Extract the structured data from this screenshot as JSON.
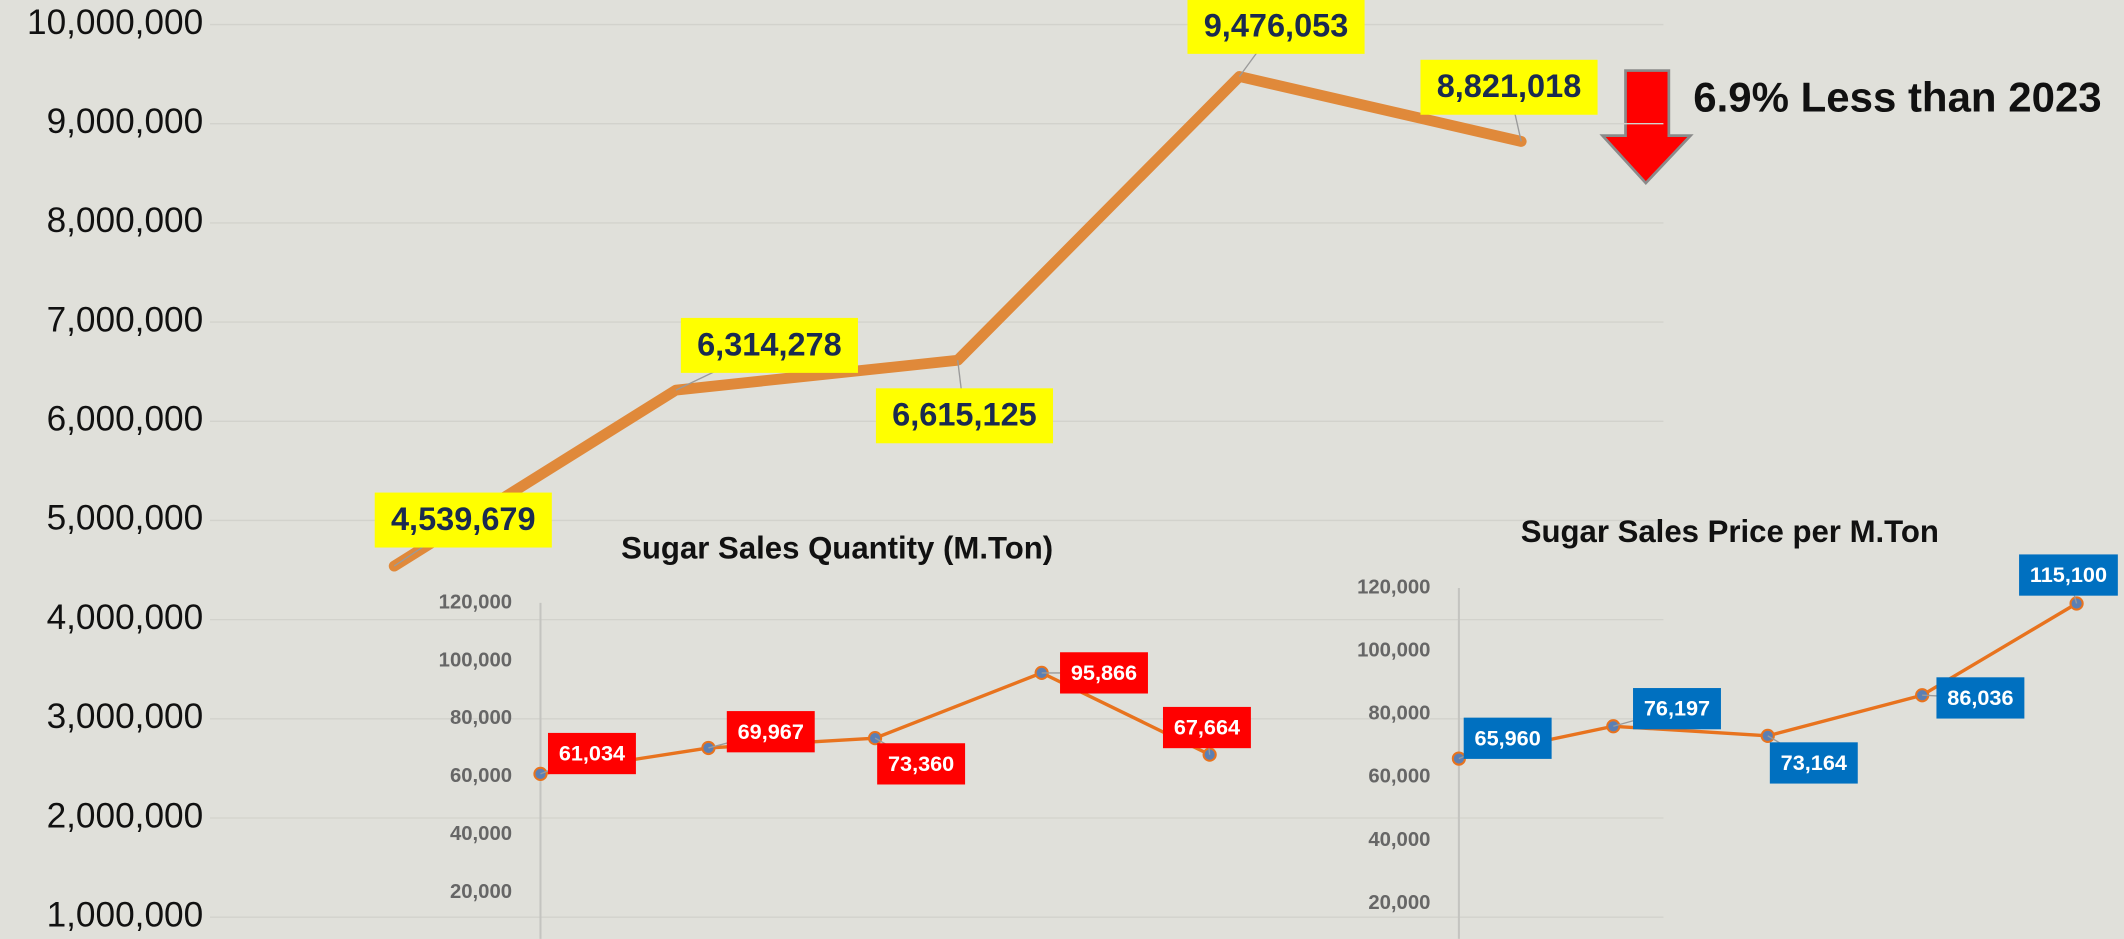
{
  "chart_data": [
    {
      "type": "line",
      "color": "#e0893a",
      "values": [
        4539679,
        6314278,
        6615125,
        9476053,
        8821018
      ],
      "value_labels": [
        "4,539,679",
        "6,314,278",
        "6,615,125",
        "9,476,053",
        "8,821,018"
      ],
      "ylim": [
        1000000,
        10000000
      ],
      "yticks": [
        {
          "value": 1000000,
          "label": "1,000,000"
        },
        {
          "value": 2000000,
          "label": "2,000,000"
        },
        {
          "value": 3000000,
          "label": "3,000,000"
        },
        {
          "value": 4000000,
          "label": "4,000,000"
        },
        {
          "value": 5000000,
          "label": "5,000,000"
        },
        {
          "value": 6000000,
          "label": "6,000,000"
        },
        {
          "value": 7000000,
          "label": "7,000,000"
        },
        {
          "value": 8000000,
          "label": "8,000,000"
        },
        {
          "value": 9000000,
          "label": "9,000,000"
        },
        {
          "value": 10000000,
          "label": "10,000,000"
        }
      ],
      "grid": true,
      "label_color": "#ffff00",
      "annotation": "6.9% Less than 2023"
    },
    {
      "type": "line",
      "title": "Sugar Sales Quantity (M.Ton)",
      "color": "#e8731e",
      "values": [
        61034,
        69967,
        73360,
        95866,
        67664
      ],
      "value_labels": [
        "61,034",
        "69,967",
        "73,360",
        "95,866",
        "67,664"
      ],
      "ylim": [
        20000,
        120000
      ],
      "yticks": [
        {
          "value": 20000,
          "label": "20,000"
        },
        {
          "value": 40000,
          "label": "40,000"
        },
        {
          "value": 60000,
          "label": "60,000"
        },
        {
          "value": 80000,
          "label": "80,000"
        },
        {
          "value": 100000,
          "label": "100,000"
        },
        {
          "value": 120000,
          "label": "120,000"
        }
      ],
      "label_color": "#ff0000"
    },
    {
      "type": "line",
      "title": "Sugar Sales Price per M.Ton",
      "color": "#e8731e",
      "values": [
        65960,
        76197,
        73164,
        86036,
        115100
      ],
      "value_labels": [
        "65,960",
        "76,197",
        "73,164",
        "86,036",
        "115,100"
      ],
      "ylim": [
        20000,
        120000
      ],
      "yticks": [
        {
          "value": 20000,
          "label": "20,000"
        },
        {
          "value": 40000,
          "label": "40,000"
        },
        {
          "value": 60000,
          "label": "60,000"
        },
        {
          "value": 80000,
          "label": "80,000"
        },
        {
          "value": 100000,
          "label": "100,000"
        },
        {
          "value": 120000,
          "label": "120,000"
        }
      ],
      "label_color": "#0070c0"
    }
  ]
}
